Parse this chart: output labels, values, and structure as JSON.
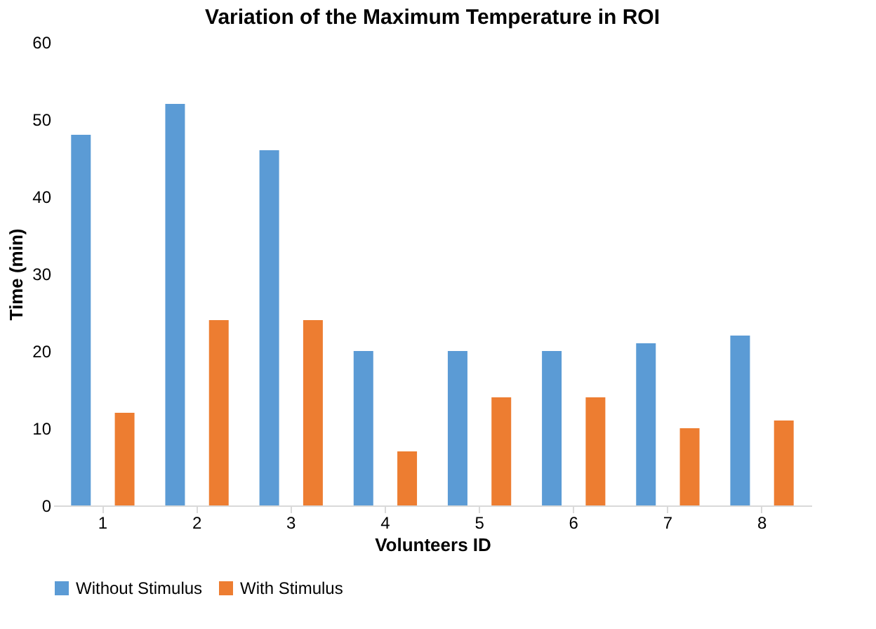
{
  "chart_data": {
    "type": "bar",
    "title": "Variation of the Maximum Temperature in ROI",
    "xlabel": "Volunteers ID",
    "ylabel": "Time (min)",
    "categories": [
      "1",
      "2",
      "3",
      "4",
      "5",
      "6",
      "7",
      "8"
    ],
    "series": [
      {
        "name": "Without Stimulus",
        "color": "#5b9bd5",
        "values": [
          48,
          52,
          46,
          20,
          20,
          20,
          21,
          22
        ]
      },
      {
        "name": "With Stimulus",
        "color": "#ed7d31",
        "values": [
          12,
          24,
          24,
          7,
          14,
          14,
          10,
          11
        ]
      }
    ],
    "ylim": [
      0,
      60
    ],
    "yticks": [
      0,
      10,
      20,
      30,
      40,
      50,
      60
    ],
    "grid": false,
    "legend": "bottom"
  }
}
